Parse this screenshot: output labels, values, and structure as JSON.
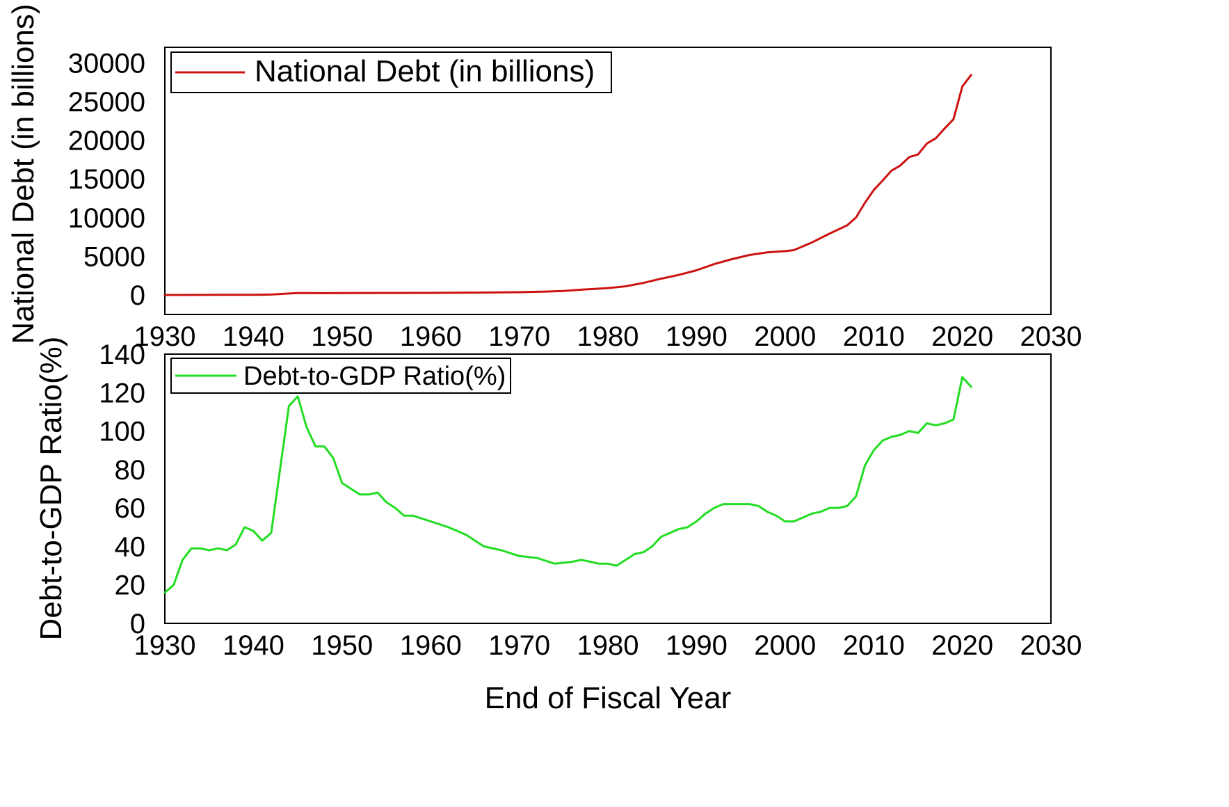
{
  "chart_data": [
    {
      "type": "line",
      "ylabel": "National Debt (in billions)",
      "xlabel": "",
      "xlim": [
        1930,
        2030
      ],
      "ylim": [
        -2500,
        32000
      ],
      "x_ticks": [
        1930,
        1940,
        1950,
        1960,
        1970,
        1980,
        1990,
        2000,
        2010,
        2020,
        2030
      ],
      "y_ticks": [
        0,
        5000,
        10000,
        15000,
        20000,
        25000,
        30000
      ],
      "legend_position": "top-left",
      "grid": false,
      "series": [
        {
          "name": "National Debt (in billions)",
          "color": "#cc1111",
          "x": [
            1930,
            1932,
            1934,
            1936,
            1938,
            1940,
            1941,
            1942,
            1943,
            1944,
            1945,
            1946,
            1948,
            1950,
            1955,
            1960,
            1965,
            1967,
            1970,
            1973,
            1975,
            1977,
            1980,
            1982,
            1984,
            1986,
            1988,
            1990,
            1992,
            1994,
            1996,
            1998,
            2000,
            2001,
            2003,
            2005,
            2007,
            2008,
            2009,
            2010,
            2011,
            2012,
            2013,
            2014,
            2015,
            2016,
            2017,
            2018,
            2019,
            2020,
            2021
          ],
          "y": [
            16,
            19,
            27,
            34,
            37,
            43,
            49,
            72,
            137,
            201,
            259,
            269,
            252,
            257,
            274,
            286,
            317,
            341,
            371,
            458,
            533,
            699,
            907,
            1142,
            1572,
            2120,
            2602,
            3206,
            4002,
            4643,
            5181,
            5526,
            5674,
            5807,
            6783,
            7933,
            9008,
            10025,
            11910,
            13562,
            14790,
            16066,
            16738,
            17824,
            18151,
            19573,
            20245,
            21516,
            22719,
            26945,
            28429
          ]
        }
      ]
    },
    {
      "type": "line",
      "ylabel": "Debt-to-GDP Ratio(%)",
      "xlabel": "End of Fiscal Year",
      "xlim": [
        1930,
        2030
      ],
      "ylim": [
        0,
        140
      ],
      "x_ticks": [
        1930,
        1940,
        1950,
        1960,
        1970,
        1980,
        1990,
        2000,
        2010,
        2020,
        2030
      ],
      "y_ticks": [
        0,
        20,
        40,
        60,
        80,
        100,
        120,
        140
      ],
      "legend_position": "top-left",
      "grid": false,
      "series": [
        {
          "name": "Debt-to-GDP Ratio(%)",
          "color": "#22dd22",
          "x": [
            1930,
            1931,
            1932,
            1933,
            1934,
            1935,
            1936,
            1937,
            1938,
            1939,
            1940,
            1941,
            1942,
            1943,
            1944,
            1945,
            1946,
            1947,
            1948,
            1949,
            1950,
            1951,
            1952,
            1953,
            1954,
            1955,
            1956,
            1957,
            1958,
            1960,
            1962,
            1964,
            1966,
            1968,
            1970,
            1972,
            1974,
            1976,
            1977,
            1978,
            1979,
            1980,
            1981,
            1982,
            1983,
            1984,
            1985,
            1986,
            1988,
            1989,
            1990,
            1991,
            1992,
            1993,
            1994,
            1995,
            1996,
            1997,
            1998,
            1999,
            2000,
            2001,
            2002,
            2003,
            2004,
            2005,
            2006,
            2007,
            2008,
            2009,
            2010,
            2011,
            2012,
            2013,
            2014,
            2015,
            2016,
            2017,
            2018,
            2019,
            2020,
            2021
          ],
          "y": [
            16,
            20,
            33,
            39,
            39,
            38,
            39,
            38,
            41,
            50,
            48,
            43,
            47,
            80,
            113,
            118,
            102,
            92,
            92,
            86,
            73,
            70,
            67,
            67,
            68,
            63,
            60,
            56,
            56,
            53,
            50,
            46,
            40,
            38,
            35,
            34,
            31,
            32,
            33,
            32,
            31,
            31,
            30,
            33,
            36,
            37,
            40,
            45,
            49,
            50,
            53,
            57,
            60,
            62,
            62,
            62,
            62,
            61,
            58,
            56,
            53,
            53,
            55,
            57,
            58,
            60,
            60,
            61,
            66,
            82,
            90,
            95,
            97,
            98,
            100,
            99,
            104,
            103,
            104,
            106,
            128,
            123
          ]
        }
      ]
    }
  ]
}
